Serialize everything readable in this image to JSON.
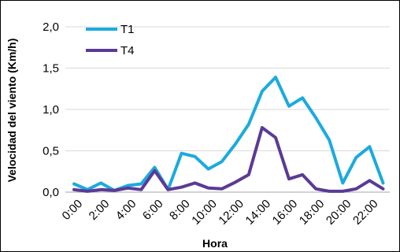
{
  "chart_data": {
    "type": "line",
    "title": "",
    "xlabel": "Hora",
    "ylabel": "Velocidad del viento (Km/h)",
    "ylim": [
      0,
      2
    ],
    "yticks": [
      "0,0",
      "0,5",
      "1,0",
      "1,5",
      "2,0"
    ],
    "ytick_values": [
      0,
      0.5,
      1.0,
      1.5,
      2.0
    ],
    "x": [
      0,
      1,
      2,
      3,
      4,
      5,
      6,
      7,
      8,
      9,
      10,
      11,
      12,
      13,
      14,
      15,
      16,
      17,
      18,
      19,
      20,
      21,
      22,
      23
    ],
    "xtick_labels": [
      "0:00",
      "2:00",
      "4:00",
      "6:00",
      "8:00",
      "10:00",
      "12:00",
      "14:00",
      "16:00",
      "18:00",
      "20:00",
      "22:00"
    ],
    "xtick_positions": [
      0,
      2,
      4,
      6,
      8,
      10,
      12,
      14,
      16,
      18,
      20,
      22
    ],
    "grid": "horizontal",
    "legend_position": "top-left",
    "series": [
      {
        "name": "T1",
        "color": "#1CAADF",
        "values": [
          0.1,
          0.03,
          0.11,
          0.02,
          0.08,
          0.1,
          0.3,
          0.03,
          0.47,
          0.43,
          0.28,
          0.37,
          0.58,
          0.82,
          1.22,
          1.39,
          1.04,
          1.14,
          0.9,
          0.63,
          0.11,
          0.42,
          0.55,
          0.11
        ]
      },
      {
        "name": "T4",
        "color": "#5B3A96",
        "values": [
          0.03,
          0.01,
          0.03,
          0.02,
          0.05,
          0.03,
          0.26,
          0.03,
          0.06,
          0.11,
          0.05,
          0.04,
          0.12,
          0.21,
          0.78,
          0.66,
          0.16,
          0.21,
          0.04,
          0.01,
          0.01,
          0.04,
          0.14,
          0.04
        ]
      }
    ]
  }
}
